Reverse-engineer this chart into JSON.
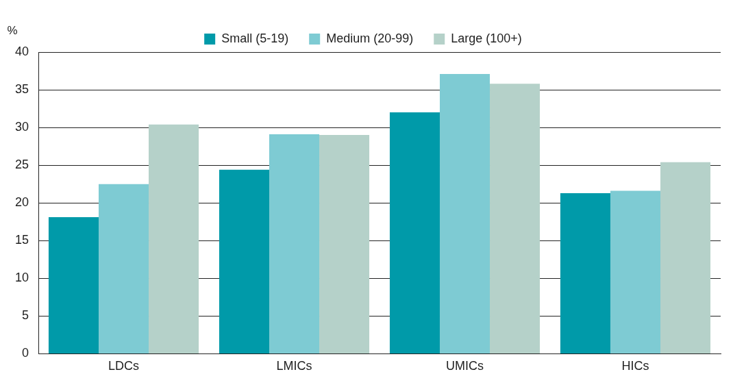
{
  "chart_data": {
    "type": "bar",
    "ylabel": "%",
    "categories": [
      "LDCs",
      "LMICs",
      "UMICs",
      "HICs"
    ],
    "series": [
      {
        "name": "Small (5-19)",
        "color": "#009aa9",
        "values": [
          18.1,
          24.4,
          32.0,
          21.3
        ]
      },
      {
        "name": "Medium (20-99)",
        "color": "#7ecbd3",
        "values": [
          22.5,
          29.1,
          37.1,
          21.6
        ]
      },
      {
        "name": "Large (100+)",
        "color": "#b5d1c9",
        "values": [
          30.4,
          29.0,
          35.8,
          25.4
        ]
      }
    ],
    "ylim": [
      0,
      40
    ],
    "yticks": [
      0,
      5,
      10,
      15,
      20,
      25,
      30,
      35,
      40
    ],
    "grid": "y",
    "legend": "top"
  }
}
